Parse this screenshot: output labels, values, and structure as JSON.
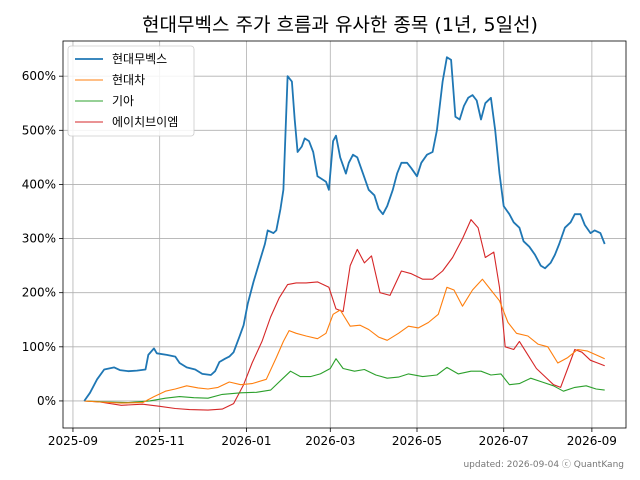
{
  "chart_data": {
    "type": "line",
    "title": "현대무벡스 주가 흐름과 유사한 종목 (1년, 5일선)",
    "xlabel": "",
    "ylabel": "",
    "x_ticks": [
      "2025-09",
      "2025-11",
      "2026-01",
      "2026-03",
      "2026-05",
      "2026-07",
      "2026-09"
    ],
    "y_ticks": [
      "0%",
      "100%",
      "200%",
      "300%",
      "400%",
      "500%",
      "600%"
    ],
    "xlim": [
      "2025-08-25",
      "2026-09-25"
    ],
    "ylim": [
      -50,
      665
    ],
    "grid": true,
    "legend_position": "top-left",
    "footer": "updated: 2026-09-04 ⓒ QuantKang",
    "series": [
      {
        "name": "현대무벡스",
        "color": "#1f77b4",
        "points": [
          [
            "2025-09-09",
            0
          ],
          [
            "2025-09-13",
            15
          ],
          [
            "2025-09-18",
            40
          ],
          [
            "2025-09-23",
            58
          ],
          [
            "2025-09-30",
            62
          ],
          [
            "2025-10-04",
            57
          ],
          [
            "2025-10-10",
            55
          ],
          [
            "2025-10-16",
            56
          ],
          [
            "2025-10-22",
            58
          ],
          [
            "2025-10-24",
            85
          ],
          [
            "2025-10-28",
            97
          ],
          [
            "2025-10-30",
            88
          ],
          [
            "2025-11-06",
            85
          ],
          [
            "2025-11-12",
            82
          ],
          [
            "2025-11-15",
            70
          ],
          [
            "2025-11-20",
            62
          ],
          [
            "2025-11-26",
            58
          ],
          [
            "2025-12-01",
            50
          ],
          [
            "2025-12-07",
            48
          ],
          [
            "2025-12-10",
            55
          ],
          [
            "2025-12-13",
            72
          ],
          [
            "2025-12-17",
            78
          ],
          [
            "2025-12-20",
            82
          ],
          [
            "2025-12-23",
            90
          ],
          [
            "2025-12-27",
            118
          ],
          [
            "2025-12-30",
            140
          ],
          [
            "2026-01-02",
            180
          ],
          [
            "2026-01-06",
            220
          ],
          [
            "2026-01-10",
            255
          ],
          [
            "2026-01-14",
            290
          ],
          [
            "2026-01-16",
            315
          ],
          [
            "2026-01-20",
            310
          ],
          [
            "2026-01-22",
            315
          ],
          [
            "2026-01-25",
            355
          ],
          [
            "2026-01-27",
            390
          ],
          [
            "2026-01-30",
            600
          ],
          [
            "2026-02-02",
            590
          ],
          [
            "2026-02-04",
            520
          ],
          [
            "2026-02-06",
            460
          ],
          [
            "2026-02-09",
            470
          ],
          [
            "2026-02-11",
            485
          ],
          [
            "2026-02-14",
            480
          ],
          [
            "2026-02-17",
            460
          ],
          [
            "2026-02-20",
            415
          ],
          [
            "2026-02-23",
            410
          ],
          [
            "2026-02-26",
            405
          ],
          [
            "2026-02-28",
            390
          ],
          [
            "2026-03-01",
            420
          ],
          [
            "2026-03-03",
            480
          ],
          [
            "2026-03-05",
            490
          ],
          [
            "2026-03-08",
            450
          ],
          [
            "2026-03-12",
            420
          ],
          [
            "2026-03-14",
            440
          ],
          [
            "2026-03-17",
            455
          ],
          [
            "2026-03-20",
            450
          ],
          [
            "2026-03-24",
            420
          ],
          [
            "2026-03-28",
            390
          ],
          [
            "2026-04-01",
            380
          ],
          [
            "2026-04-04",
            355
          ],
          [
            "2026-04-07",
            345
          ],
          [
            "2026-04-10",
            360
          ],
          [
            "2026-04-14",
            390
          ],
          [
            "2026-04-17",
            420
          ],
          [
            "2026-04-20",
            440
          ],
          [
            "2026-04-24",
            440
          ],
          [
            "2026-04-27",
            430
          ],
          [
            "2026-05-01",
            415
          ],
          [
            "2026-05-04",
            440
          ],
          [
            "2026-05-08",
            455
          ],
          [
            "2026-05-12",
            460
          ],
          [
            "2026-05-15",
            500
          ],
          [
            "2026-05-19",
            590
          ],
          [
            "2026-05-22",
            635
          ],
          [
            "2026-05-25",
            630
          ],
          [
            "2026-05-28",
            525
          ],
          [
            "2026-05-31",
            520
          ],
          [
            "2026-06-03",
            545
          ],
          [
            "2026-06-06",
            560
          ],
          [
            "2026-06-09",
            565
          ],
          [
            "2026-06-12",
            555
          ],
          [
            "2026-06-15",
            520
          ],
          [
            "2026-06-18",
            550
          ],
          [
            "2026-06-22",
            560
          ],
          [
            "2026-06-25",
            500
          ],
          [
            "2026-06-28",
            420
          ],
          [
            "2026-07-01",
            360
          ],
          [
            "2026-07-05",
            345
          ],
          [
            "2026-07-08",
            330
          ],
          [
            "2026-07-12",
            320
          ],
          [
            "2026-07-15",
            295
          ],
          [
            "2026-07-19",
            285
          ],
          [
            "2026-07-23",
            270
          ],
          [
            "2026-07-27",
            250
          ],
          [
            "2026-07-30",
            245
          ],
          [
            "2026-08-03",
            255
          ],
          [
            "2026-08-06",
            270
          ],
          [
            "2026-08-09",
            290
          ],
          [
            "2026-08-13",
            320
          ],
          [
            "2026-08-17",
            330
          ],
          [
            "2026-08-20",
            345
          ],
          [
            "2026-08-24",
            345
          ],
          [
            "2026-08-27",
            325
          ],
          [
            "2026-08-31",
            310
          ],
          [
            "2026-09-03",
            315
          ],
          [
            "2026-09-07",
            310
          ],
          [
            "2026-09-10",
            290
          ]
        ]
      },
      {
        "name": "현대차",
        "color": "#ff7f0e",
        "points": [
          [
            "2025-09-09",
            0
          ],
          [
            "2025-09-20",
            -2
          ],
          [
            "2025-10-05",
            -4
          ],
          [
            "2025-10-20",
            -3
          ],
          [
            "2025-10-28",
            8
          ],
          [
            "2025-11-05",
            18
          ],
          [
            "2025-11-12",
            22
          ],
          [
            "2025-11-20",
            28
          ],
          [
            "2025-11-28",
            24
          ],
          [
            "2025-12-05",
            22
          ],
          [
            "2025-12-12",
            25
          ],
          [
            "2025-12-20",
            35
          ],
          [
            "2025-12-28",
            30
          ],
          [
            "2026-01-05",
            32
          ],
          [
            "2026-01-15",
            40
          ],
          [
            "2026-01-22",
            80
          ],
          [
            "2026-01-27",
            110
          ],
          [
            "2026-01-31",
            130
          ],
          [
            "2026-02-05",
            125
          ],
          [
            "2026-02-12",
            120
          ],
          [
            "2026-02-20",
            115
          ],
          [
            "2026-02-26",
            125
          ],
          [
            "2026-03-03",
            160
          ],
          [
            "2026-03-08",
            168
          ],
          [
            "2026-03-15",
            138
          ],
          [
            "2026-03-22",
            140
          ],
          [
            "2026-03-28",
            132
          ],
          [
            "2026-04-04",
            118
          ],
          [
            "2026-04-10",
            112
          ],
          [
            "2026-04-18",
            125
          ],
          [
            "2026-04-25",
            138
          ],
          [
            "2026-05-02",
            135
          ],
          [
            "2026-05-09",
            145
          ],
          [
            "2026-05-16",
            160
          ],
          [
            "2026-05-22",
            210
          ],
          [
            "2026-05-27",
            205
          ],
          [
            "2026-06-02",
            175
          ],
          [
            "2026-06-09",
            205
          ],
          [
            "2026-06-16",
            225
          ],
          [
            "2026-06-22",
            205
          ],
          [
            "2026-06-28",
            185
          ],
          [
            "2026-07-04",
            145
          ],
          [
            "2026-07-10",
            125
          ],
          [
            "2026-07-18",
            120
          ],
          [
            "2026-07-25",
            105
          ],
          [
            "2026-08-01",
            100
          ],
          [
            "2026-08-08",
            70
          ],
          [
            "2026-08-15",
            80
          ],
          [
            "2026-08-22",
            95
          ],
          [
            "2026-08-29",
            92
          ],
          [
            "2026-09-04",
            85
          ],
          [
            "2026-09-10",
            78
          ]
        ]
      },
      {
        "name": "기아",
        "color": "#2ca02c",
        "points": [
          [
            "2025-09-09",
            0
          ],
          [
            "2025-09-25",
            -2
          ],
          [
            "2025-10-10",
            -3
          ],
          [
            "2025-10-25",
            0
          ],
          [
            "2025-11-05",
            5
          ],
          [
            "2025-11-15",
            8
          ],
          [
            "2025-11-25",
            6
          ],
          [
            "2025-12-05",
            5
          ],
          [
            "2025-12-15",
            12
          ],
          [
            "2025-12-28",
            15
          ],
          [
            "2026-01-08",
            16
          ],
          [
            "2026-01-18",
            20
          ],
          [
            "2026-01-26",
            40
          ],
          [
            "2026-02-01",
            55
          ],
          [
            "2026-02-08",
            45
          ],
          [
            "2026-02-15",
            45
          ],
          [
            "2026-02-22",
            50
          ],
          [
            "2026-03-01",
            60
          ],
          [
            "2026-03-05",
            78
          ],
          [
            "2026-03-10",
            60
          ],
          [
            "2026-03-18",
            55
          ],
          [
            "2026-03-25",
            58
          ],
          [
            "2026-04-02",
            48
          ],
          [
            "2026-04-10",
            42
          ],
          [
            "2026-04-18",
            44
          ],
          [
            "2026-04-25",
            50
          ],
          [
            "2026-05-05",
            45
          ],
          [
            "2026-05-15",
            48
          ],
          [
            "2026-05-22",
            62
          ],
          [
            "2026-05-30",
            50
          ],
          [
            "2026-06-08",
            55
          ],
          [
            "2026-06-15",
            55
          ],
          [
            "2026-06-22",
            48
          ],
          [
            "2026-06-29",
            50
          ],
          [
            "2026-07-05",
            30
          ],
          [
            "2026-07-12",
            32
          ],
          [
            "2026-07-20",
            42
          ],
          [
            "2026-07-28",
            35
          ],
          [
            "2026-08-05",
            28
          ],
          [
            "2026-08-12",
            18
          ],
          [
            "2026-08-20",
            25
          ],
          [
            "2026-08-28",
            28
          ],
          [
            "2026-09-04",
            22
          ],
          [
            "2026-09-10",
            20
          ]
        ]
      },
      {
        "name": "에이치브이엠",
        "color": "#d62728",
        "points": [
          [
            "2025-09-09",
            0
          ],
          [
            "2025-09-20",
            -2
          ],
          [
            "2025-10-05",
            -8
          ],
          [
            "2025-10-20",
            -6
          ],
          [
            "2025-11-01",
            -10
          ],
          [
            "2025-11-12",
            -14
          ],
          [
            "2025-11-22",
            -16
          ],
          [
            "2025-12-05",
            -17
          ],
          [
            "2025-12-15",
            -15
          ],
          [
            "2025-12-23",
            -5
          ],
          [
            "2025-12-30",
            30
          ],
          [
            "2026-01-05",
            70
          ],
          [
            "2026-01-12",
            110
          ],
          [
            "2026-01-18",
            155
          ],
          [
            "2026-01-24",
            190
          ],
          [
            "2026-01-30",
            215
          ],
          [
            "2026-02-05",
            218
          ],
          [
            "2026-02-12",
            218
          ],
          [
            "2026-02-20",
            220
          ],
          [
            "2026-02-28",
            210
          ],
          [
            "2026-03-05",
            170
          ],
          [
            "2026-03-10",
            165
          ],
          [
            "2026-03-15",
            250
          ],
          [
            "2026-03-20",
            280
          ],
          [
            "2026-03-25",
            255
          ],
          [
            "2026-03-30",
            268
          ],
          [
            "2026-04-05",
            200
          ],
          [
            "2026-04-12",
            195
          ],
          [
            "2026-04-20",
            240
          ],
          [
            "2026-04-27",
            235
          ],
          [
            "2026-05-05",
            225
          ],
          [
            "2026-05-12",
            225
          ],
          [
            "2026-05-19",
            240
          ],
          [
            "2026-05-26",
            265
          ],
          [
            "2026-06-02",
            300
          ],
          [
            "2026-06-08",
            335
          ],
          [
            "2026-06-13",
            320
          ],
          [
            "2026-06-18",
            265
          ],
          [
            "2026-06-24",
            275
          ],
          [
            "2026-06-28",
            210
          ],
          [
            "2026-07-02",
            100
          ],
          [
            "2026-07-08",
            95
          ],
          [
            "2026-07-12",
            110
          ],
          [
            "2026-07-18",
            85
          ],
          [
            "2026-07-24",
            60
          ],
          [
            "2026-07-30",
            45
          ],
          [
            "2026-08-05",
            30
          ],
          [
            "2026-08-10",
            25
          ],
          [
            "2026-08-15",
            60
          ],
          [
            "2026-08-20",
            95
          ],
          [
            "2026-08-25",
            90
          ],
          [
            "2026-08-31",
            75
          ],
          [
            "2026-09-05",
            70
          ],
          [
            "2026-09-10",
            65
          ]
        ]
      }
    ]
  }
}
